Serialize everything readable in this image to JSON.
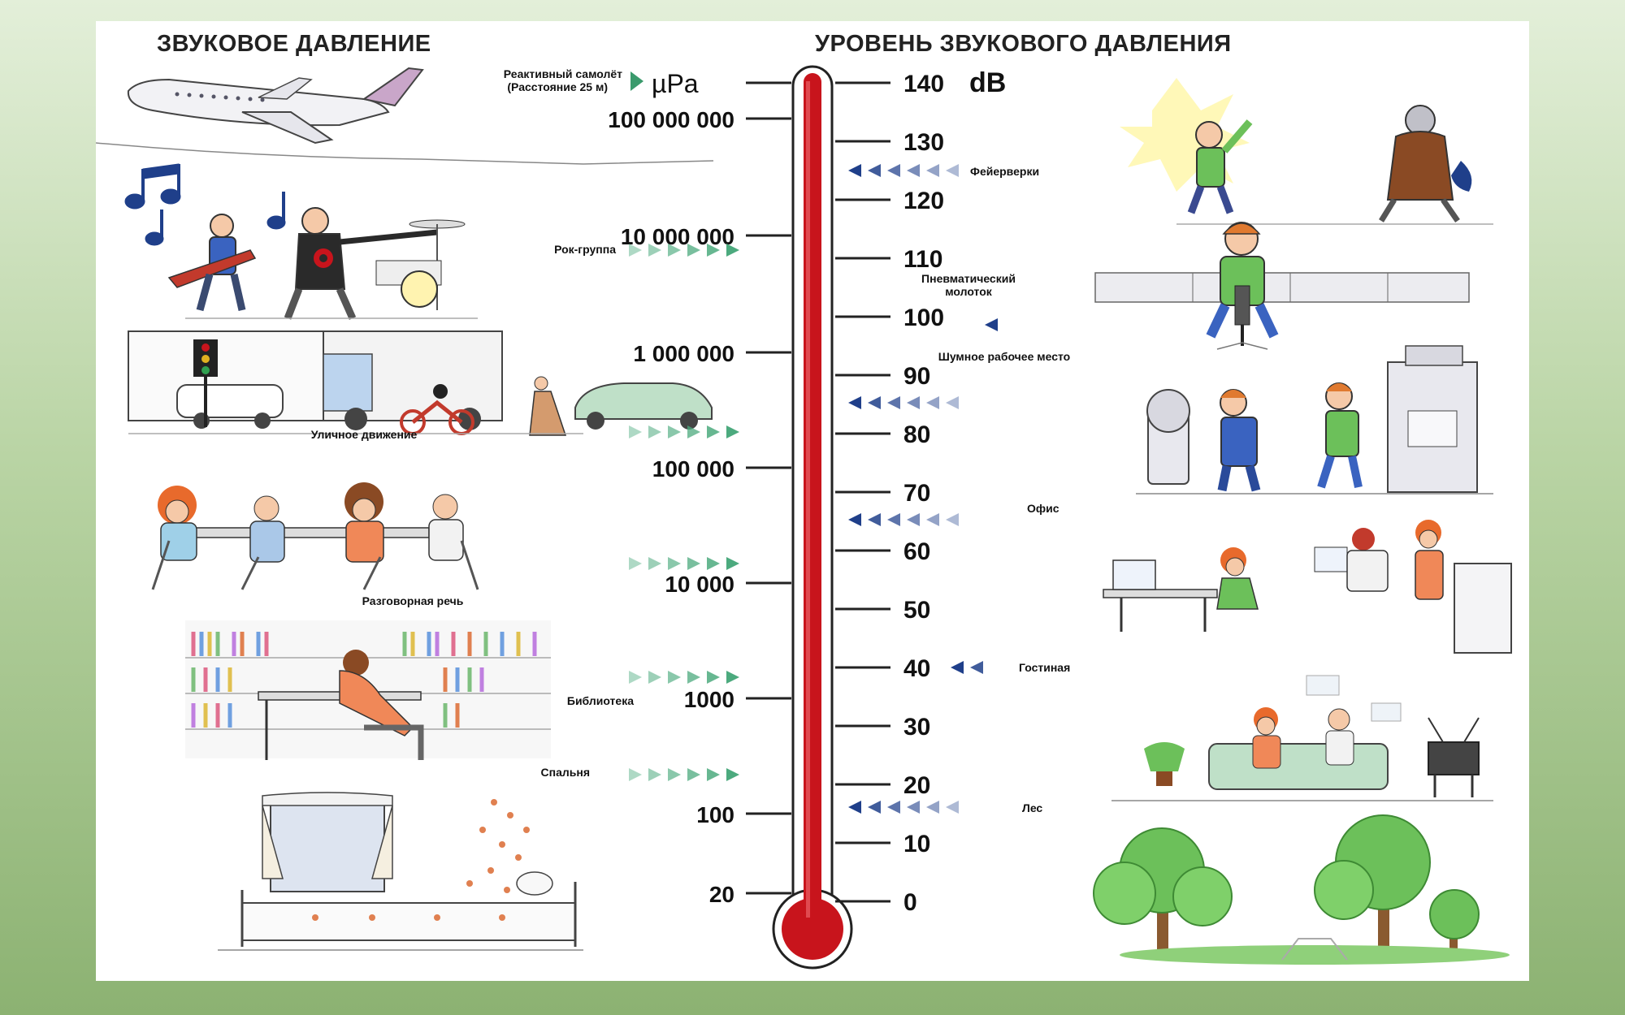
{
  "headings": {
    "left": "ЗВУКОВОЕ ДАВЛЕНИЕ",
    "right": "УРОВЕНЬ ЗВУКОВОГО ДАВЛЕНИЯ"
  },
  "units": {
    "pressure": "µPa",
    "level": "dB"
  },
  "db_scale": [
    "140",
    "130",
    "120",
    "110",
    "100",
    "90",
    "80",
    "70",
    "60",
    "50",
    "40",
    "30",
    "20",
    "10",
    "0"
  ],
  "pressure_scale": [
    "100 000 000",
    "10 000 000",
    "1 000 000",
    "100 000",
    "10 000",
    "1000",
    "100",
    "20"
  ],
  "left_sources": {
    "jet_line1": "Реактивный самолёт",
    "jet_line2": "(Расстояние 25 м)",
    "rock_band": "Рок-группа",
    "street_traffic": "Уличное движение",
    "conversation": "Разговорная речь",
    "library": "Библиотека",
    "bedroom": "Спальня"
  },
  "right_sources": {
    "fireworks": "Фейерверки",
    "jackhammer_line1": "Пневматический",
    "jackhammer_line2": "молоток",
    "noisy_workplace": "Шумное рабочее место",
    "office": "Офис",
    "living_room": "Гостиная",
    "forest": "Лес"
  },
  "colors": {
    "thermometer": "#c8141c",
    "left_arrows": "#4caa7e",
    "right_arrows": "#1f3f8a",
    "background": "#b9d4a4"
  },
  "illustration_icons": [
    "airplane-icon",
    "music-notes-icon",
    "rock-band-icon",
    "traffic-scene-icon",
    "conversation-icon",
    "library-icon",
    "bedroom-icon",
    "fireworks-icon",
    "jackhammer-icon",
    "workshop-icon",
    "office-icon",
    "living-room-icon",
    "forest-icon"
  ]
}
